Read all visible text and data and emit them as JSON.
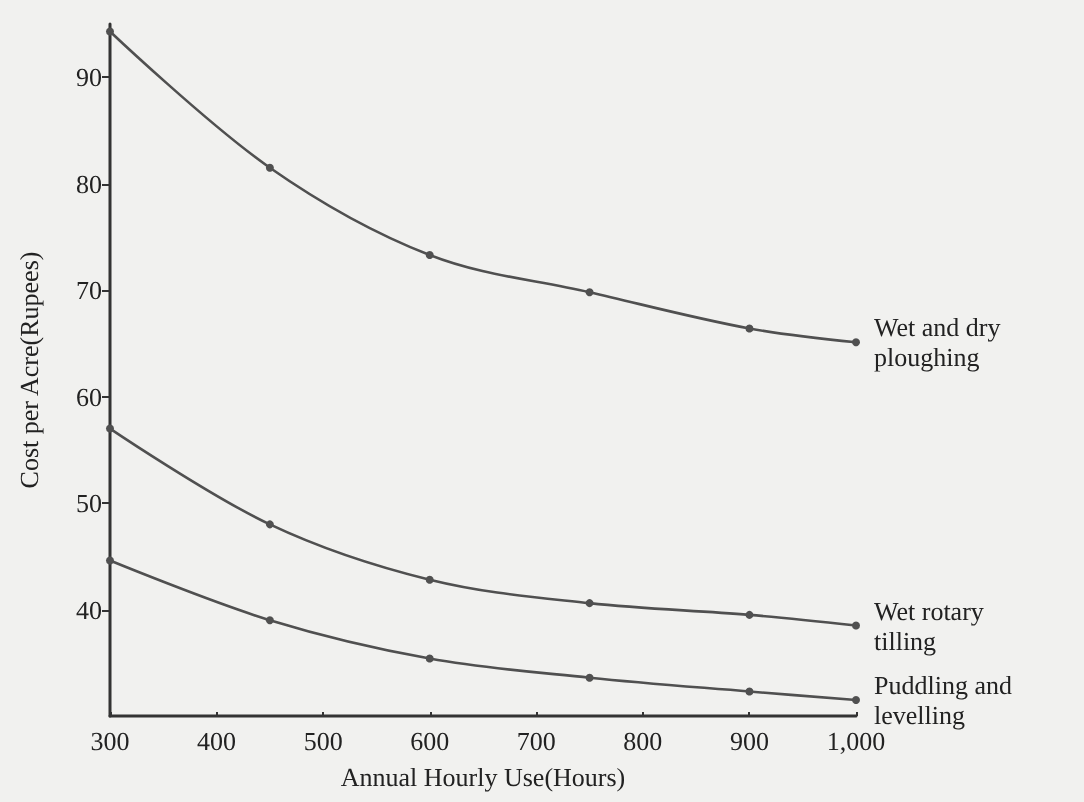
{
  "chart_data": {
    "type": "line",
    "xlabel": "Annual Hourly Use(Hours)",
    "ylabel": "Cost per Acre(Rupees)",
    "x": [
      300,
      450,
      600,
      750,
      900,
      1000
    ],
    "series": [
      {
        "name": "Wet and dry ploughing",
        "color": "#505050",
        "values": [
          94.3,
          81.5,
          73.3,
          69.8,
          66.4,
          65.1
        ]
      },
      {
        "name": "Wet rotary tilling",
        "color": "#505050",
        "values": [
          57,
          48,
          42.8,
          40.6,
          39.5,
          38.5
        ]
      },
      {
        "name": "Puddling and levelling",
        "color": "#505050",
        "values": [
          44.6,
          39,
          35.4,
          33.6,
          32.3,
          31.5
        ]
      }
    ],
    "xlim": [
      300,
      1000
    ],
    "xticks": [
      300,
      400,
      500,
      600,
      700,
      800,
      900,
      {
        "value": 1000,
        "label": "1,000"
      }
    ],
    "ylim": [
      30,
      95
    ],
    "yticks": [
      40,
      50,
      60,
      70,
      80,
      90
    ],
    "grid": false,
    "legend": false,
    "marker": "circle",
    "line_style": "solid"
  }
}
